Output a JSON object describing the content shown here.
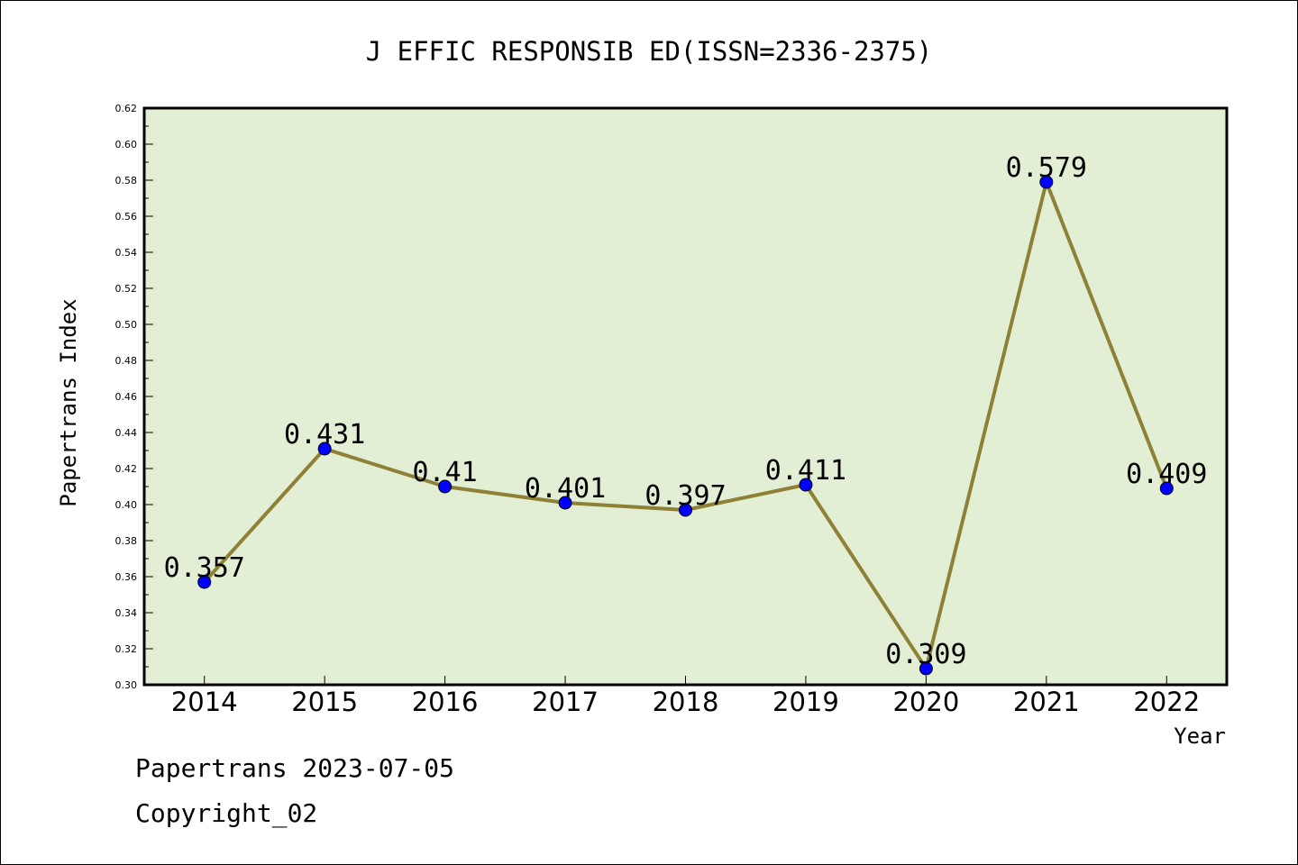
{
  "chart_data": {
    "type": "line",
    "title": "J EFFIC RESPONSIB ED(ISSN=2336-2375)",
    "xlabel": "Year",
    "ylabel": "Papertrans Index",
    "categories": [
      "2014",
      "2015",
      "2016",
      "2017",
      "2018",
      "2019",
      "2020",
      "2021",
      "2022"
    ],
    "values": [
      0.357,
      0.431,
      0.41,
      0.401,
      0.397,
      0.411,
      0.309,
      0.579,
      0.409
    ],
    "data_labels": [
      "0.357",
      "0.431",
      "0.41",
      "0.401",
      "0.397",
      "0.411",
      "0.309",
      "0.579",
      "0.409"
    ],
    "ylim": [
      0.3,
      0.62
    ],
    "yticks": [
      "0.30",
      "0.32",
      "0.34",
      "0.36",
      "0.38",
      "0.40",
      "0.42",
      "0.44",
      "0.46",
      "0.48",
      "0.50",
      "0.52",
      "0.54",
      "0.56",
      "0.58",
      "0.60",
      "0.62"
    ],
    "grid": false,
    "colors": {
      "plot_background": "#e2efd4",
      "line": "#8e8034",
      "marker": "#0000ff"
    }
  },
  "footer": {
    "source": "Papertrans 2023-07-05",
    "copyright": "Copyright_02"
  }
}
